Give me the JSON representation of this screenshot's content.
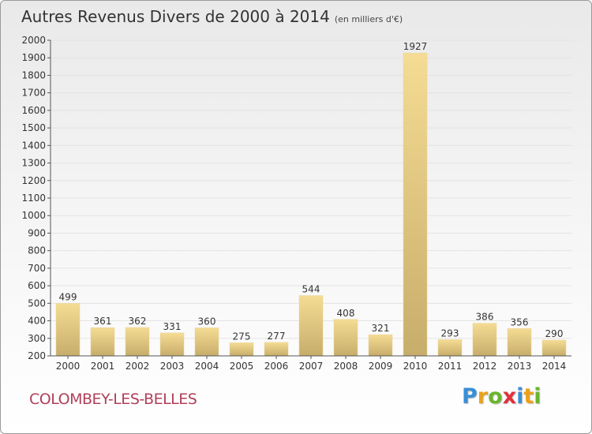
{
  "title": "Autres Revenus Divers de 2000 à 2014",
  "subtitle": "(en milliers d'€)",
  "commune": "COLOMBEY-LES-BELLES",
  "logo": {
    "letters": [
      {
        "char": "P",
        "color": "#3a8fd6"
      },
      {
        "char": "r",
        "color": "#e8a21a"
      },
      {
        "char": "o",
        "color": "#69b52d"
      },
      {
        "char": "x",
        "color": "#e0313d"
      },
      {
        "char": "i",
        "color": "#3a8fd6"
      },
      {
        "char": "t",
        "color": "#e8a21a"
      },
      {
        "char": "i",
        "color": "#69b52d"
      }
    ]
  },
  "chart_data": {
    "type": "bar",
    "title": "Autres Revenus Divers de 2000 à 2014",
    "subtitle": "(en milliers d'€)",
    "categories": [
      "2000",
      "2001",
      "2002",
      "2003",
      "2004",
      "2005",
      "2006",
      "2007",
      "2008",
      "2009",
      "2010",
      "2011",
      "2012",
      "2013",
      "2014"
    ],
    "values": [
      499,
      361,
      362,
      331,
      360,
      275,
      277,
      544,
      408,
      321,
      1927,
      293,
      386,
      356,
      290
    ],
    "ylim": [
      200,
      2000
    ],
    "yticks": [
      200,
      300,
      400,
      500,
      600,
      700,
      800,
      900,
      1000,
      1100,
      1200,
      1300,
      1400,
      1500,
      1600,
      1700,
      1800,
      1900,
      2000
    ],
    "grid": true,
    "colors": {
      "bar_light": "#f5dc94",
      "bar_dark": "#c7ad6a",
      "axis": "#555555",
      "grid": "#e3e3e3"
    }
  }
}
